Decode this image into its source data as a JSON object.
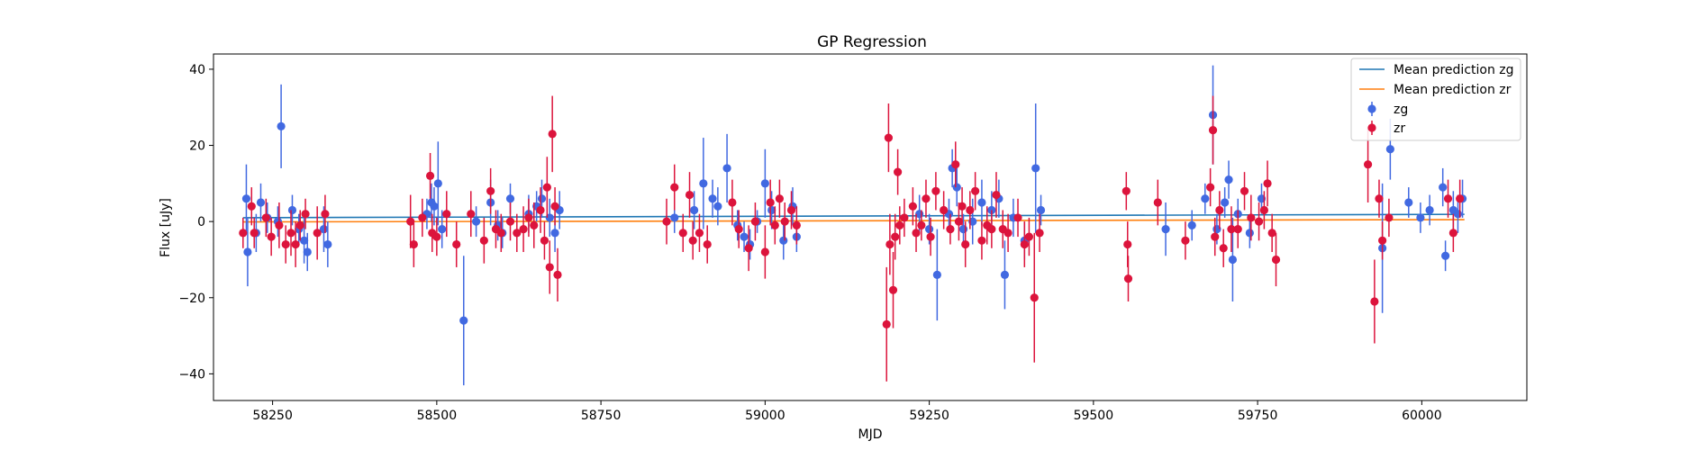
{
  "chart_data": {
    "type": "scatter",
    "title": "GP Regression",
    "xlabel": "MJD",
    "ylabel": "Flux [uJy]",
    "xlim": [
      58160,
      60160
    ],
    "ylim": [
      -47,
      44
    ],
    "xticks": [
      58250,
      58500,
      58750,
      59000,
      59250,
      59500,
      59750,
      60000
    ],
    "yticks": [
      -40,
      -20,
      0,
      20,
      40
    ],
    "grid": false,
    "legend_position": "top-right",
    "legend": {
      "line_zg": "Mean prediction zg",
      "line_zr": "Mean prediction zr",
      "err_zg": "zg",
      "err_zr": "zr"
    },
    "mean_predictions": [
      {
        "name": "Mean prediction zg",
        "color": "#1f77b4",
        "x": [
          58205,
          60065
        ],
        "y": [
          1.0,
          1.9
        ]
      },
      {
        "name": "Mean prediction zr",
        "color": "#ff7f0e",
        "x": [
          58205,
          60065
        ],
        "y": [
          -0.1,
          0.5
        ]
      }
    ],
    "series": [
      {
        "name": "zg",
        "color": "#4169e1",
        "points": [
          [
            58210,
            6,
            9
          ],
          [
            58212,
            -8,
            9
          ],
          [
            58225,
            -3,
            5
          ],
          [
            58232,
            5,
            5
          ],
          [
            58242,
            1,
            4
          ],
          [
            58258,
            0,
            4
          ],
          [
            58263,
            25,
            11
          ],
          [
            58280,
            3,
            4
          ],
          [
            58290,
            -2,
            4
          ],
          [
            58298,
            -5,
            6
          ],
          [
            58303,
            -8,
            5
          ],
          [
            58328,
            -2,
            6
          ],
          [
            58334,
            -6,
            6
          ],
          [
            58485,
            2,
            4
          ],
          [
            58492,
            5,
            5
          ],
          [
            58496,
            4,
            5
          ],
          [
            58502,
            10,
            11
          ],
          [
            58508,
            -2,
            5
          ],
          [
            58541,
            -26,
            17
          ],
          [
            58560,
            0,
            4
          ],
          [
            58582,
            5,
            6
          ],
          [
            58593,
            -1,
            4
          ],
          [
            58600,
            -3,
            4
          ],
          [
            58612,
            6,
            4
          ],
          [
            58640,
            2,
            5
          ],
          [
            58652,
            4,
            4
          ],
          [
            58660,
            6,
            5
          ],
          [
            58672,
            1,
            5
          ],
          [
            58680,
            -3,
            5
          ],
          [
            58687,
            3,
            5
          ],
          [
            58862,
            1,
            4
          ],
          [
            58892,
            3,
            5
          ],
          [
            58906,
            10,
            12
          ],
          [
            58920,
            6,
            5
          ],
          [
            58928,
            4,
            5
          ],
          [
            58942,
            14,
            9
          ],
          [
            58958,
            -1,
            4
          ],
          [
            58968,
            -4,
            4
          ],
          [
            58977,
            -6,
            4
          ],
          [
            58988,
            0,
            3
          ],
          [
            59000,
            10,
            9
          ],
          [
            59010,
            3,
            5
          ],
          [
            59028,
            -5,
            5
          ],
          [
            59042,
            4,
            5
          ],
          [
            59048,
            -4,
            4
          ],
          [
            59235,
            2,
            5
          ],
          [
            59250,
            -2,
            4
          ],
          [
            59262,
            -14,
            12
          ],
          [
            59280,
            2,
            4
          ],
          [
            59285,
            14,
            5
          ],
          [
            59292,
            9,
            5
          ],
          [
            59302,
            -2,
            4
          ],
          [
            59316,
            0,
            6
          ],
          [
            59330,
            5,
            6
          ],
          [
            59345,
            3,
            5
          ],
          [
            59356,
            6,
            5
          ],
          [
            59365,
            -14,
            9
          ],
          [
            59378,
            1,
            5
          ],
          [
            59395,
            -5,
            5
          ],
          [
            59412,
            14,
            17
          ],
          [
            59420,
            3,
            4
          ],
          [
            59610,
            -2,
            7
          ],
          [
            59650,
            -1,
            4
          ],
          [
            59670,
            6,
            4
          ],
          [
            59682,
            28,
            13
          ],
          [
            59688,
            -2,
            4
          ],
          [
            59700,
            5,
            4
          ],
          [
            59706,
            11,
            5
          ],
          [
            59712,
            -10,
            11
          ],
          [
            59720,
            2,
            4
          ],
          [
            59738,
            -3,
            4
          ],
          [
            59756,
            6,
            4
          ],
          [
            59940,
            -7,
            17
          ],
          [
            59952,
            19,
            8
          ],
          [
            59980,
            5,
            4
          ],
          [
            59998,
            1,
            4
          ],
          [
            60012,
            3,
            4
          ],
          [
            60032,
            9,
            5
          ],
          [
            60036,
            -9,
            4
          ],
          [
            60048,
            3,
            5
          ],
          [
            60055,
            2,
            5
          ],
          [
            60062,
            6,
            5
          ]
        ]
      },
      {
        "name": "zr",
        "color": "#dc143c",
        "points": [
          [
            58205,
            -3,
            4
          ],
          [
            58218,
            4,
            5
          ],
          [
            58222,
            -3,
            4
          ],
          [
            58240,
            1,
            5
          ],
          [
            58248,
            -4,
            5
          ],
          [
            58260,
            -1,
            6
          ],
          [
            58270,
            -6,
            5
          ],
          [
            58278,
            -3,
            6
          ],
          [
            58285,
            -6,
            6
          ],
          [
            58292,
            -1,
            4
          ],
          [
            58300,
            2,
            4
          ],
          [
            58318,
            -3,
            7
          ],
          [
            58330,
            2,
            5
          ],
          [
            58460,
            0,
            7
          ],
          [
            58465,
            -6,
            6
          ],
          [
            58478,
            1,
            5
          ],
          [
            58490,
            12,
            6
          ],
          [
            58493,
            -3,
            5
          ],
          [
            58500,
            -4,
            5
          ],
          [
            58515,
            2,
            6
          ],
          [
            58530,
            -6,
            6
          ],
          [
            58552,
            2,
            6
          ],
          [
            58572,
            -5,
            6
          ],
          [
            58582,
            8,
            6
          ],
          [
            58590,
            -2,
            5
          ],
          [
            58598,
            -3,
            5
          ],
          [
            58612,
            0,
            5
          ],
          [
            58622,
            -3,
            5
          ],
          [
            58632,
            -2,
            6
          ],
          [
            58640,
            1,
            5
          ],
          [
            58648,
            -1,
            6
          ],
          [
            58658,
            3,
            6
          ],
          [
            58664,
            -5,
            5
          ],
          [
            58668,
            9,
            8
          ],
          [
            58672,
            -12,
            7
          ],
          [
            58676,
            23,
            10
          ],
          [
            58680,
            4,
            5
          ],
          [
            58684,
            -14,
            7
          ],
          [
            58850,
            0,
            6
          ],
          [
            58862,
            9,
            6
          ],
          [
            58875,
            -3,
            5
          ],
          [
            58885,
            7,
            6
          ],
          [
            58890,
            -5,
            5
          ],
          [
            58900,
            -3,
            5
          ],
          [
            58912,
            -6,
            5
          ],
          [
            58950,
            5,
            6
          ],
          [
            58960,
            -2,
            5
          ],
          [
            58975,
            -7,
            6
          ],
          [
            58985,
            0,
            5
          ],
          [
            59000,
            -8,
            7
          ],
          [
            59008,
            5,
            6
          ],
          [
            59015,
            -1,
            5
          ],
          [
            59022,
            6,
            5
          ],
          [
            59030,
            0,
            5
          ],
          [
            59040,
            3,
            5
          ],
          [
            59048,
            -1,
            5
          ],
          [
            59185,
            -27,
            15
          ],
          [
            59188,
            22,
            9
          ],
          [
            59190,
            -6,
            8
          ],
          [
            59195,
            -18,
            10
          ],
          [
            59198,
            -4,
            6
          ],
          [
            59202,
            13,
            6
          ],
          [
            59205,
            -1,
            5
          ],
          [
            59212,
            1,
            5
          ],
          [
            59225,
            4,
            5
          ],
          [
            59230,
            -3,
            5
          ],
          [
            59238,
            -1,
            4
          ],
          [
            59245,
            6,
            5
          ],
          [
            59252,
            -4,
            5
          ],
          [
            59260,
            8,
            5
          ],
          [
            59272,
            3,
            5
          ],
          [
            59282,
            -2,
            4
          ],
          [
            59290,
            15,
            6
          ],
          [
            59295,
            0,
            5
          ],
          [
            59300,
            4,
            5
          ],
          [
            59305,
            -6,
            6
          ],
          [
            59312,
            3,
            5
          ],
          [
            59320,
            8,
            5
          ],
          [
            59330,
            -5,
            5
          ],
          [
            59338,
            -1,
            5
          ],
          [
            59345,
            -2,
            5
          ],
          [
            59352,
            7,
            6
          ],
          [
            59362,
            -2,
            5
          ],
          [
            59370,
            -3,
            5
          ],
          [
            59385,
            1,
            5
          ],
          [
            59395,
            -6,
            6
          ],
          [
            59402,
            -4,
            5
          ],
          [
            59410,
            -20,
            17
          ],
          [
            59418,
            -3,
            5
          ],
          [
            59550,
            8,
            5
          ],
          [
            59552,
            -6,
            6
          ],
          [
            59553,
            -15,
            6
          ],
          [
            59598,
            5,
            6
          ],
          [
            59640,
            -5,
            5
          ],
          [
            59678,
            9,
            5
          ],
          [
            59682,
            24,
            9
          ],
          [
            59685,
            -4,
            5
          ],
          [
            59692,
            3,
            5
          ],
          [
            59698,
            -7,
            5
          ],
          [
            59710,
            -2,
            6
          ],
          [
            59720,
            -2,
            5
          ],
          [
            59730,
            8,
            5
          ],
          [
            59740,
            1,
            6
          ],
          [
            59752,
            0,
            5
          ],
          [
            59760,
            3,
            5
          ],
          [
            59765,
            10,
            6
          ],
          [
            59772,
            -3,
            5
          ],
          [
            59778,
            -10,
            7
          ],
          [
            59918,
            15,
            10
          ],
          [
            59928,
            -21,
            11
          ],
          [
            59935,
            6,
            5
          ],
          [
            59940,
            -5,
            5
          ],
          [
            59950,
            1,
            5
          ],
          [
            60040,
            6,
            5
          ],
          [
            60048,
            -3,
            5
          ],
          [
            60058,
            6,
            5
          ]
        ]
      }
    ]
  }
}
